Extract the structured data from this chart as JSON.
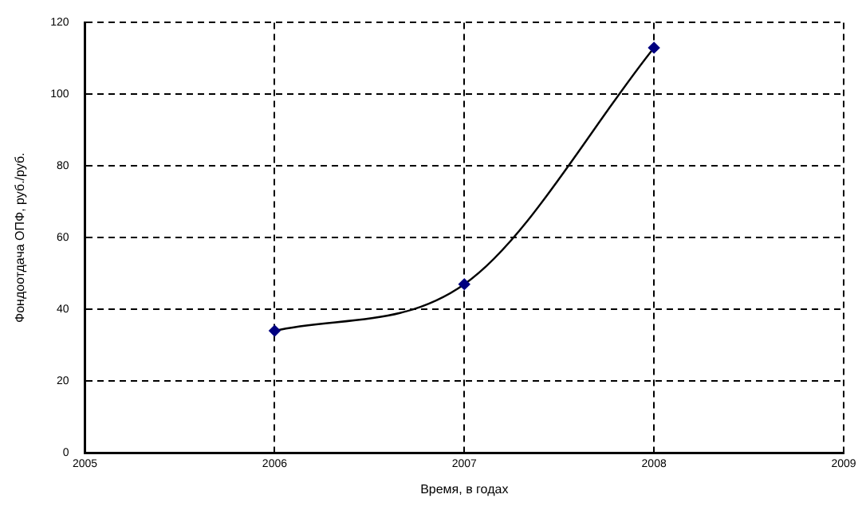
{
  "chart_data": {
    "type": "line",
    "xlabel": "Время, в годах",
    "ylabel": "Фондоотдача ОПФ, руб./руб.",
    "x": [
      2006,
      2007,
      2008
    ],
    "series": [
      {
        "color": "#000080",
        "values": [
          34,
          47,
          113
        ]
      }
    ],
    "xlim": [
      2005,
      2009
    ],
    "xticks": [
      2005,
      2006,
      2007,
      2008,
      2009
    ],
    "ylim": [
      0,
      120
    ],
    "yticks": [
      0,
      20,
      40,
      60,
      80,
      100,
      120
    ],
    "grid": true,
    "legend": false,
    "marker": "diamond",
    "line_style": "solid"
  }
}
